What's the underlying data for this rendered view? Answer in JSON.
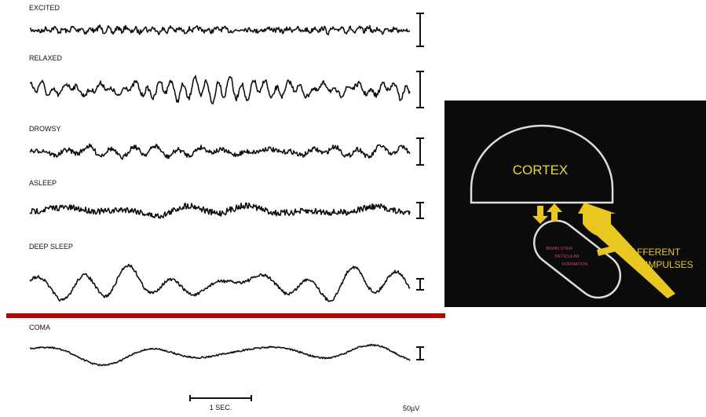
{
  "traces": [
    {
      "label": "EXCITED"
    },
    {
      "label": "RELAXED"
    },
    {
      "label": "DROWSY"
    },
    {
      "label": "ASLEEP"
    },
    {
      "label": "DEEP SLEEP"
    },
    {
      "label": "COMA"
    }
  ],
  "time_scale": "1 SEC.",
  "voltage_scale": "50µV",
  "diagram": {
    "cortex": "CORTEX",
    "formation": [
      "BRAIN STEM",
      "RETICULAR",
      "FORMATION"
    ],
    "afferent": [
      "AFFERENT",
      "IMPULSES"
    ]
  }
}
